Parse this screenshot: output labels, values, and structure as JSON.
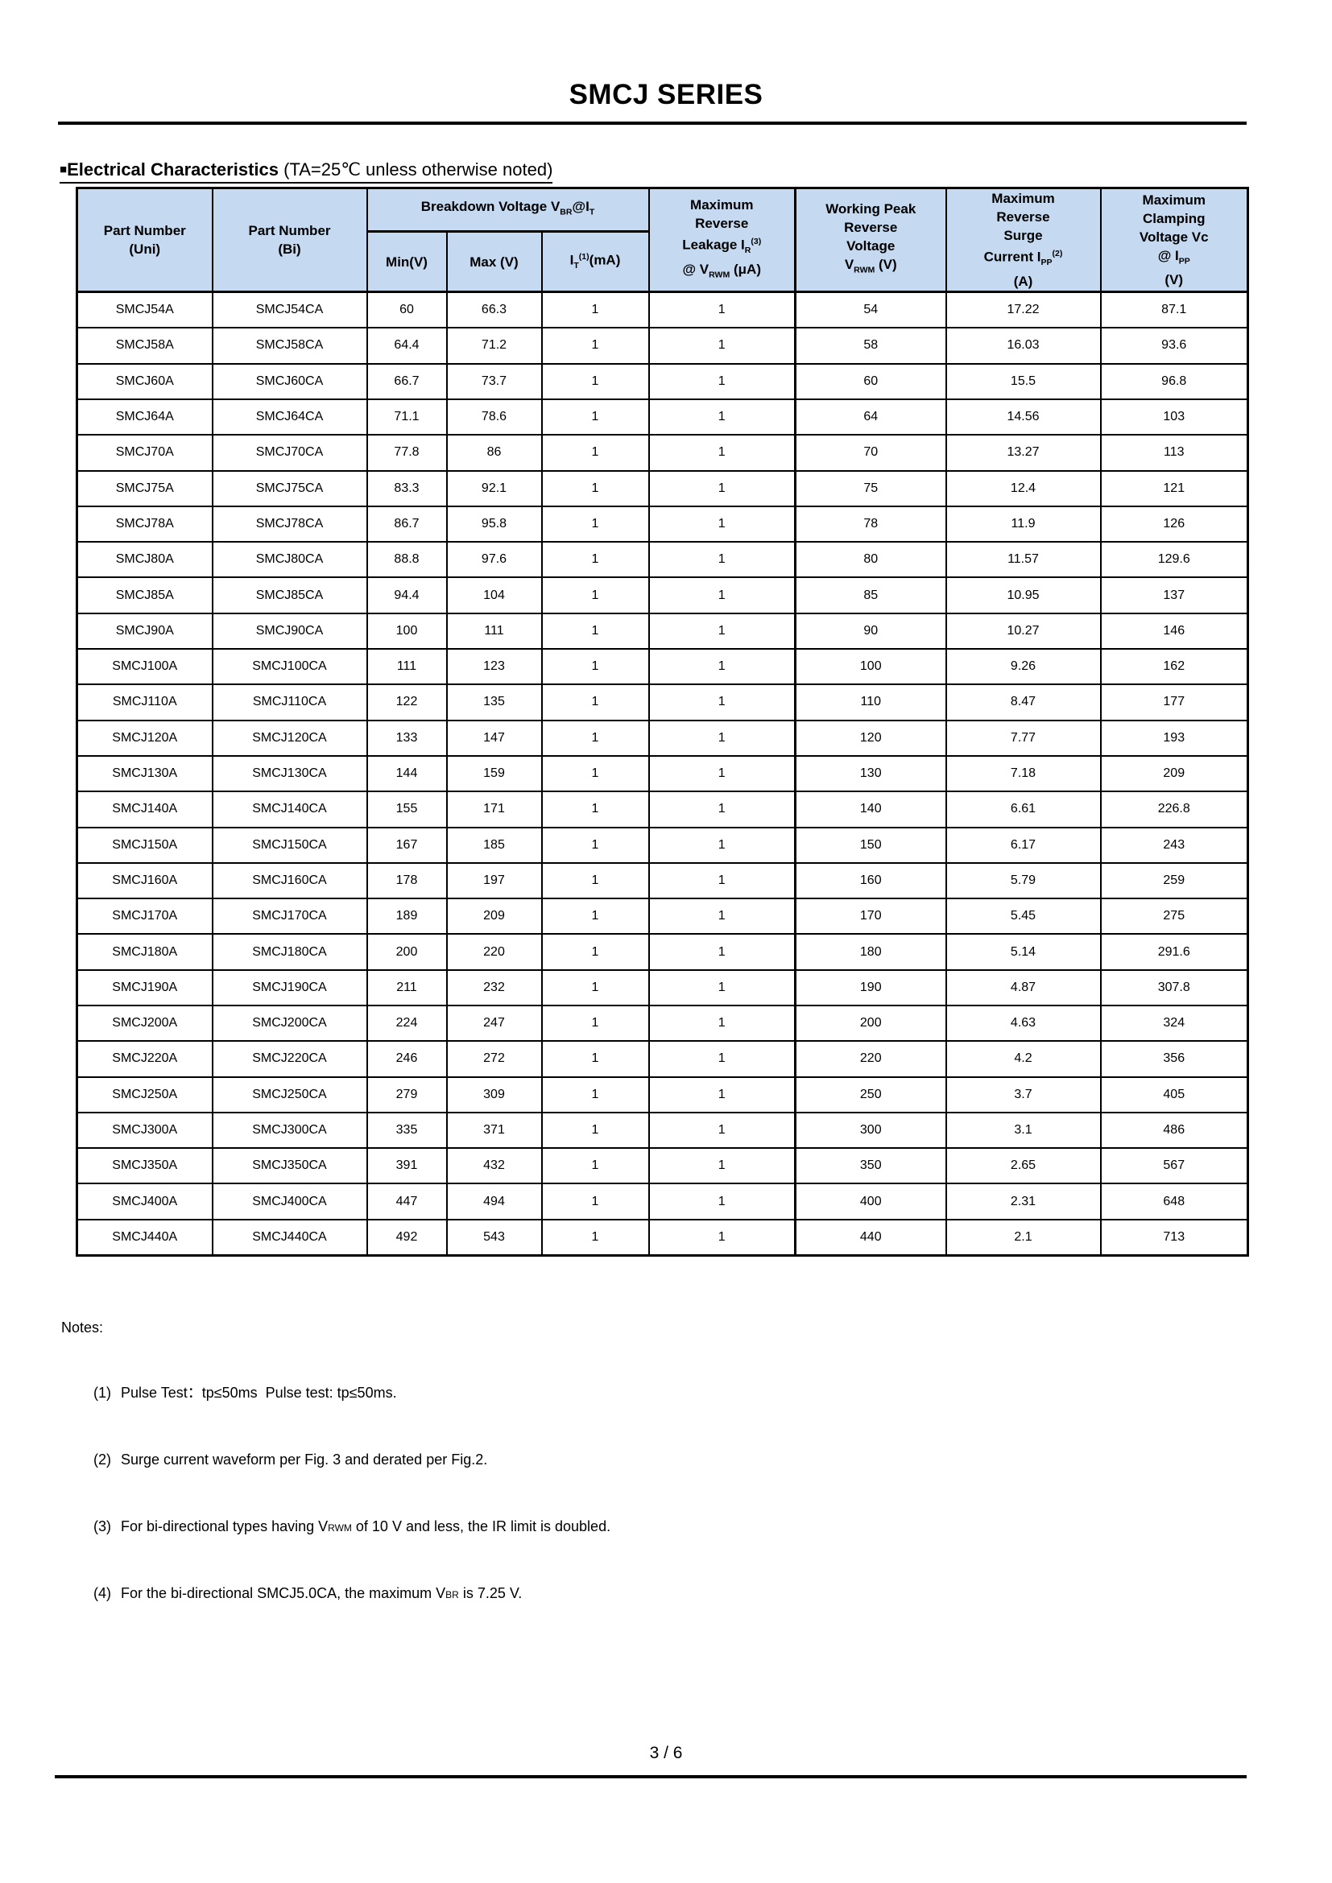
{
  "page": {
    "title": "SMCJ SERIES",
    "footer_page": "3 / 6"
  },
  "section": {
    "bullet": "■",
    "heading_bold": "Electrical Characteristics",
    "heading_normal": " (TA=25℃ unless otherwise noted)"
  },
  "colors": {
    "header_bg": "#c5d9f1",
    "border": "#000000"
  },
  "table": {
    "header": {
      "part_uni": {
        "line1": "Part Number",
        "line2": "(Uni)"
      },
      "part_bi": {
        "line1": "Part Number",
        "line2": "(Bi)"
      },
      "breakdown": {
        "pre": "Breakdown Voltage V",
        "sub1": "BR",
        "mid": "@I",
        "sub2": "T"
      },
      "min": "Min(V)",
      "max": "Max (V)",
      "it": {
        "pre": "I",
        "sub": "T",
        "sup": "(1)",
        "post": "(mA)"
      },
      "leakage": {
        "line1": "Maximum",
        "line2": "Reverse",
        "line3_pre": "Leakage I",
        "line3_sub": "R",
        "line3_sup": "(3)",
        "line4_pre": "@ V",
        "line4_sub": "RWM",
        "line4_post": " (μA)"
      },
      "vrwm": {
        "line1": "Working Peak",
        "line2": "Reverse",
        "line3": "Voltage",
        "line4_pre": "V",
        "line4_sub": "RWM",
        "line4_post": " (V)"
      },
      "ipp": {
        "line1": "Maximum",
        "line2": "Reverse",
        "line3": "Surge",
        "line4_pre": "Current I",
        "line4_sub": "PP",
        "line4_sup": "(2)",
        "line5": "(A)"
      },
      "vc": {
        "line1": "Maximum",
        "line2": "Clamping",
        "line3": "Voltage Vc",
        "line4_pre": "@ I",
        "line4_sub": "PP",
        "line5": "(V)"
      }
    },
    "rows": [
      [
        "SMCJ54A",
        "SMCJ54CA",
        "60",
        "66.3",
        "1",
        "1",
        "54",
        "17.22",
        "87.1"
      ],
      [
        "SMCJ58A",
        "SMCJ58CA",
        "64.4",
        "71.2",
        "1",
        "1",
        "58",
        "16.03",
        "93.6"
      ],
      [
        "SMCJ60A",
        "SMCJ60CA",
        "66.7",
        "73.7",
        "1",
        "1",
        "60",
        "15.5",
        "96.8"
      ],
      [
        "SMCJ64A",
        "SMCJ64CA",
        "71.1",
        "78.6",
        "1",
        "1",
        "64",
        "14.56",
        "103"
      ],
      [
        "SMCJ70A",
        "SMCJ70CA",
        "77.8",
        "86",
        "1",
        "1",
        "70",
        "13.27",
        "113"
      ],
      [
        "SMCJ75A",
        "SMCJ75CA",
        "83.3",
        "92.1",
        "1",
        "1",
        "75",
        "12.4",
        "121"
      ],
      [
        "SMCJ78A",
        "SMCJ78CA",
        "86.7",
        "95.8",
        "1",
        "1",
        "78",
        "11.9",
        "126"
      ],
      [
        "SMCJ80A",
        "SMCJ80CA",
        "88.8",
        "97.6",
        "1",
        "1",
        "80",
        "11.57",
        "129.6"
      ],
      [
        "SMCJ85A",
        "SMCJ85CA",
        "94.4",
        "104",
        "1",
        "1",
        "85",
        "10.95",
        "137"
      ],
      [
        "SMCJ90A",
        "SMCJ90CA",
        "100",
        "111",
        "1",
        "1",
        "90",
        "10.27",
        "146"
      ],
      [
        "SMCJ100A",
        "SMCJ100CA",
        "111",
        "123",
        "1",
        "1",
        "100",
        "9.26",
        "162"
      ],
      [
        "SMCJ110A",
        "SMCJ110CA",
        "122",
        "135",
        "1",
        "1",
        "110",
        "8.47",
        "177"
      ],
      [
        "SMCJ120A",
        "SMCJ120CA",
        "133",
        "147",
        "1",
        "1",
        "120",
        "7.77",
        "193"
      ],
      [
        "SMCJ130A",
        "SMCJ130CA",
        "144",
        "159",
        "1",
        "1",
        "130",
        "7.18",
        "209"
      ],
      [
        "SMCJ140A",
        "SMCJ140CA",
        "155",
        "171",
        "1",
        "1",
        "140",
        "6.61",
        "226.8"
      ],
      [
        "SMCJ150A",
        "SMCJ150CA",
        "167",
        "185",
        "1",
        "1",
        "150",
        "6.17",
        "243"
      ],
      [
        "SMCJ160A",
        "SMCJ160CA",
        "178",
        "197",
        "1",
        "1",
        "160",
        "5.79",
        "259"
      ],
      [
        "SMCJ170A",
        "SMCJ170CA",
        "189",
        "209",
        "1",
        "1",
        "170",
        "5.45",
        "275"
      ],
      [
        "SMCJ180A",
        "SMCJ180CA",
        "200",
        "220",
        "1",
        "1",
        "180",
        "5.14",
        "291.6"
      ],
      [
        "SMCJ190A",
        "SMCJ190CA",
        "211",
        "232",
        "1",
        "1",
        "190",
        "4.87",
        "307.8"
      ],
      [
        "SMCJ200A",
        "SMCJ200CA",
        "224",
        "247",
        "1",
        "1",
        "200",
        "4.63",
        "324"
      ],
      [
        "SMCJ220A",
        "SMCJ220CA",
        "246",
        "272",
        "1",
        "1",
        "220",
        "4.2",
        "356"
      ],
      [
        "SMCJ250A",
        "SMCJ250CA",
        "279",
        "309",
        "1",
        "1",
        "250",
        "3.7",
        "405"
      ],
      [
        "SMCJ300A",
        "SMCJ300CA",
        "335",
        "371",
        "1",
        "1",
        "300",
        "3.1",
        "486"
      ],
      [
        "SMCJ350A",
        "SMCJ350CA",
        "391",
        "432",
        "1",
        "1",
        "350",
        "2.65",
        "567"
      ],
      [
        "SMCJ400A",
        "SMCJ400CA",
        "447",
        "494",
        "1",
        "1",
        "400",
        "2.31",
        "648"
      ],
      [
        "SMCJ440A",
        "SMCJ440CA",
        "492",
        "543",
        "1",
        "1",
        "440",
        "2.1",
        "713"
      ]
    ]
  },
  "notes": {
    "title": "Notes:",
    "items": [
      {
        "label": "(1)",
        "pre": "Pulse Test：tp≤50ms  Pulse test: tp≤50ms.",
        "small": "",
        "post": ""
      },
      {
        "label": "(2)",
        "pre": "Surge current waveform per Fig. 3 and derated per Fig.2.",
        "small": "",
        "post": ""
      },
      {
        "label": "(3)",
        "pre": "For bi-directional types having V",
        "small": "RWM",
        "post": " of 10 V and less, the IR limit is doubled."
      },
      {
        "label": "(4)",
        "pre": "For the bi-directional SMCJ5.0CA, the maximum V",
        "small": "BR",
        "post": " is 7.25 V."
      }
    ]
  }
}
